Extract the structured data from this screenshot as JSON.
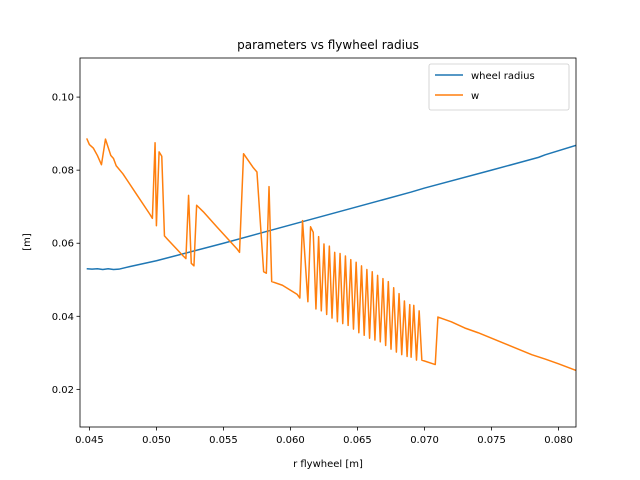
{
  "chart_data": {
    "type": "line",
    "title": "parameters vs flywheel radius",
    "xlabel": "r flywheel [m]",
    "ylabel": "[m]",
    "xlim": [
      0.0443,
      0.0813
    ],
    "ylim": [
      0.0097,
      0.1107
    ],
    "xticks": [
      0.045,
      0.05,
      0.055,
      0.06,
      0.065,
      0.07,
      0.075,
      0.08
    ],
    "xtick_labels": [
      "0.045",
      "0.050",
      "0.055",
      "0.060",
      "0.065",
      "0.070",
      "0.075",
      "0.080"
    ],
    "yticks": [
      0.02,
      0.04,
      0.06,
      0.08,
      0.1
    ],
    "ytick_labels": [
      "0.02",
      "0.04",
      "0.06",
      "0.08",
      "0.10"
    ],
    "grid": false,
    "legend_position": "top-right",
    "series": [
      {
        "name": "wheel radius",
        "color": "#1f77b4",
        "x": [
          0.0448,
          0.0452,
          0.0456,
          0.046,
          0.0464,
          0.0468,
          0.0472,
          0.048,
          0.05,
          0.055,
          0.06,
          0.065,
          0.069,
          0.07,
          0.075,
          0.0785,
          0.079,
          0.0813
        ],
        "y": [
          0.053,
          0.0529,
          0.053,
          0.0528,
          0.053,
          0.0528,
          0.0529,
          0.0536,
          0.0552,
          0.06,
          0.065,
          0.07,
          0.074,
          0.0751,
          0.08,
          0.0835,
          0.0842,
          0.0868
        ]
      },
      {
        "name": "w",
        "color": "#ff7f0e",
        "x": [
          0.0448,
          0.045,
          0.0453,
          0.0456,
          0.0459,
          0.0462,
          0.0466,
          0.0468,
          0.047,
          0.0475,
          0.0485,
          0.0495,
          0.0497,
          0.0499,
          0.05,
          0.0502,
          0.0504,
          0.0506,
          0.0508,
          0.052,
          0.0522,
          0.0524,
          0.0526,
          0.0528,
          0.053,
          0.0535,
          0.0545,
          0.056,
          0.0562,
          0.0565,
          0.0572,
          0.0575,
          0.058,
          0.0582,
          0.0584,
          0.0586,
          0.0594,
          0.0605,
          0.0607,
          0.0609,
          0.0613,
          0.0615,
          0.0617,
          0.0619,
          0.0621,
          0.0623,
          0.0625,
          0.0627,
          0.0629,
          0.0631,
          0.0633,
          0.0635,
          0.0637,
          0.0639,
          0.0641,
          0.0643,
          0.0645,
          0.0647,
          0.0649,
          0.0651,
          0.0653,
          0.0655,
          0.0657,
          0.0659,
          0.0661,
          0.0663,
          0.0665,
          0.0667,
          0.0669,
          0.0671,
          0.0673,
          0.0675,
          0.0677,
          0.0679,
          0.0681,
          0.0683,
          0.0685,
          0.0687,
          0.0689,
          0.069,
          0.0692,
          0.0694,
          0.0696,
          0.0698,
          0.0708,
          0.071,
          0.072,
          0.073,
          0.074,
          0.075,
          0.076,
          0.077,
          0.078,
          0.079,
          0.08,
          0.0813
        ],
        "y": [
          0.0887,
          0.087,
          0.086,
          0.084,
          0.0815,
          0.0885,
          0.084,
          0.0832,
          0.0812,
          0.079,
          0.0735,
          0.068,
          0.0668,
          0.0875,
          0.0648,
          0.085,
          0.0838,
          0.062,
          0.0612,
          0.0565,
          0.0558,
          0.0731,
          0.0545,
          0.0538,
          0.0704,
          0.0686,
          0.0645,
          0.0585,
          0.0575,
          0.0845,
          0.0808,
          0.0795,
          0.0522,
          0.0518,
          0.0755,
          0.0495,
          0.0485,
          0.046,
          0.045,
          0.0662,
          0.044,
          0.0645,
          0.063,
          0.042,
          0.0618,
          0.0415,
          0.0598,
          0.0405,
          0.0592,
          0.0395,
          0.0575,
          0.0385,
          0.0572,
          0.038,
          0.0565,
          0.0375,
          0.0555,
          0.0365,
          0.0548,
          0.0355,
          0.0538,
          0.0348,
          0.0528,
          0.034,
          0.0522,
          0.0335,
          0.0512,
          0.033,
          0.0503,
          0.032,
          0.0495,
          0.031,
          0.0478,
          0.0302,
          0.0462,
          0.0295,
          0.0442,
          0.029,
          0.0432,
          0.0288,
          0.043,
          0.028,
          0.0415,
          0.028,
          0.0268,
          0.0398,
          0.0385,
          0.0368,
          0.0355,
          0.034,
          0.0325,
          0.031,
          0.0295,
          0.0283,
          0.027,
          0.0252
        ]
      }
    ]
  }
}
